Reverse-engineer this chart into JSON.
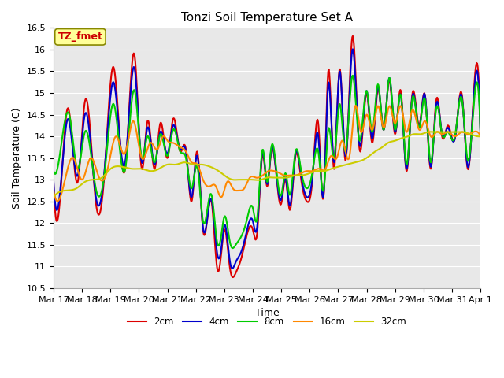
{
  "title": "Tonzi Soil Temperature Set A",
  "xlabel": "Time",
  "ylabel": "Soil Temperature (C)",
  "xlim": [
    0,
    15
  ],
  "ylim": [
    10.5,
    16.5
  ],
  "yticks": [
    10.5,
    11.0,
    11.5,
    12.0,
    12.5,
    13.0,
    13.5,
    14.0,
    14.5,
    15.0,
    15.5,
    16.0,
    16.5
  ],
  "xtick_labels": [
    "Mar 17",
    "Mar 18",
    "Mar 19",
    "Mar 20",
    "Mar 21",
    "Mar 22",
    "Mar 23",
    "Mar 24",
    "Mar 25",
    "Mar 26",
    "Mar 27",
    "Mar 28",
    "Mar 29",
    "Mar 30",
    "Mar 31",
    "Apr 1"
  ],
  "legend_labels": [
    "2cm",
    "4cm",
    "8cm",
    "16cm",
    "32cm"
  ],
  "line_colors": [
    "#dd0000",
    "#0000cc",
    "#00cc00",
    "#ff8800",
    "#cccc00"
  ],
  "line_widths": [
    1.5,
    1.5,
    1.5,
    1.5,
    1.5
  ],
  "fig_bg_color": "#ffffff",
  "plot_bg_color": "#e8e8e8",
  "grid_color": "#ffffff",
  "annotation_text": "TZ_fmet",
  "annotation_bg": "#ffff99",
  "annotation_border": "#888800",
  "title_fontsize": 11,
  "axis_label_fontsize": 9,
  "tick_fontsize": 8
}
